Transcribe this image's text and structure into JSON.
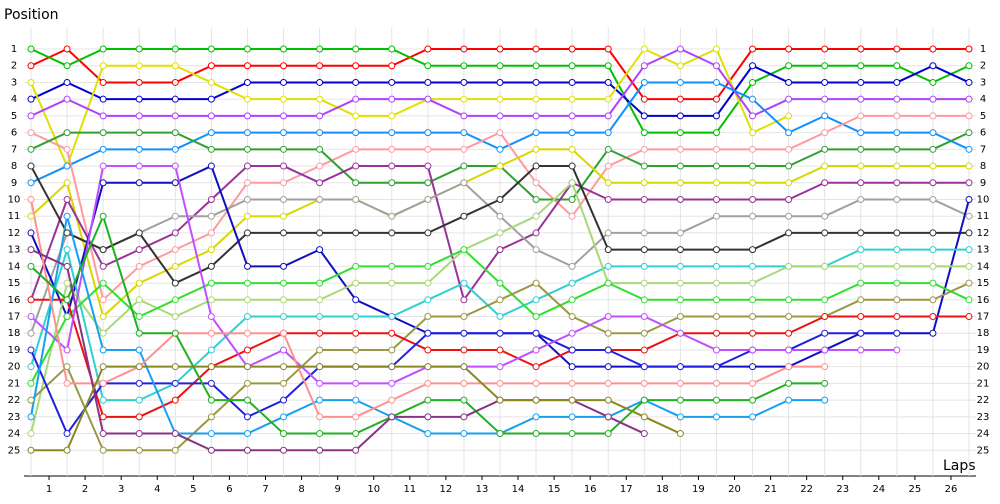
{
  "chart_data": {
    "type": "line",
    "y_axis_label": "Position",
    "x_axis_label": "Laps",
    "x": [
      0,
      1,
      2,
      3,
      4,
      5,
      6,
      7,
      8,
      9,
      10,
      11,
      12,
      13,
      14,
      15,
      16,
      17,
      18,
      19,
      20,
      21,
      22,
      23,
      24,
      25,
      26
    ],
    "xlim": [
      0,
      26
    ],
    "xticks": [
      {
        "value": 0.5,
        "label": "1"
      },
      {
        "value": 1.5,
        "label": "2"
      },
      {
        "value": 2.5,
        "label": "3"
      },
      {
        "value": 3.5,
        "label": "4"
      },
      {
        "value": 4.5,
        "label": "5"
      },
      {
        "value": 5.5,
        "label": "6"
      },
      {
        "value": 6.5,
        "label": "7"
      },
      {
        "value": 7.5,
        "label": "8"
      },
      {
        "value": 8.5,
        "label": "9"
      },
      {
        "value": 9.5,
        "label": "10"
      },
      {
        "value": 10.5,
        "label": "11"
      },
      {
        "value": 11.5,
        "label": "12"
      },
      {
        "value": 12.5,
        "label": "13"
      },
      {
        "value": 13.5,
        "label": "14"
      },
      {
        "value": 14.5,
        "label": "15"
      },
      {
        "value": 15.5,
        "label": "16"
      },
      {
        "value": 16.5,
        "label": "17"
      },
      {
        "value": 17.5,
        "label": "18"
      },
      {
        "value": 18.5,
        "label": "19"
      },
      {
        "value": 19.5,
        "label": "20"
      },
      {
        "value": 20.5,
        "label": "21"
      },
      {
        "value": 21.5,
        "label": "22"
      },
      {
        "value": 22.5,
        "label": "23"
      },
      {
        "value": 23.5,
        "label": "24"
      },
      {
        "value": 24.5,
        "label": "25"
      },
      {
        "value": 25.5,
        "label": "26"
      }
    ],
    "ylim": [
      26,
      0
    ],
    "yticks": [
      1,
      2,
      3,
      4,
      5,
      6,
      7,
      8,
      9,
      10,
      11,
      12,
      13,
      14,
      15,
      16,
      17,
      18,
      19,
      20,
      21,
      22,
      23,
      24,
      25
    ],
    "grid": true,
    "series": [
      {
        "color": "#ff0000",
        "values": [
          2,
          1,
          3,
          3,
          3,
          2,
          2,
          2,
          2,
          2,
          2,
          1,
          1,
          1,
          1,
          1,
          1,
          4,
          4,
          4,
          1,
          1,
          1,
          1,
          1,
          1,
          1
        ]
      },
      {
        "color": "#00c000",
        "values": [
          1,
          2,
          1,
          1,
          1,
          1,
          1,
          1,
          1,
          1,
          1,
          2,
          2,
          2,
          2,
          2,
          2,
          6,
          6,
          6,
          3,
          2,
          2,
          2,
          2,
          3,
          2
        ]
      },
      {
        "color": "#0000d0",
        "values": [
          4,
          3,
          4,
          4,
          4,
          4,
          3,
          3,
          3,
          3,
          3,
          3,
          3,
          3,
          3,
          3,
          3,
          5,
          5,
          5,
          2,
          3,
          3,
          3,
          3,
          2,
          3
        ]
      },
      {
        "color": "#e0e000",
        "values": [
          3,
          8,
          2,
          2,
          2,
          3,
          4,
          4,
          4,
          5,
          5,
          4,
          4,
          4,
          4,
          4,
          4,
          1,
          2,
          1,
          6,
          5,
          null,
          null,
          null,
          null,
          null
        ]
      },
      {
        "color": "#b040ff",
        "values": [
          5,
          4,
          5,
          5,
          5,
          5,
          5,
          5,
          5,
          4,
          4,
          4,
          5,
          5,
          5,
          5,
          5,
          2,
          1,
          2,
          5,
          4,
          4,
          4,
          4,
          4,
          4
        ]
      },
      {
        "color": "#1090ff",
        "values": [
          9,
          8,
          7,
          7,
          7,
          6,
          6,
          6,
          6,
          6,
          6,
          6,
          6,
          7,
          6,
          6,
          6,
          3,
          3,
          3,
          4,
          6,
          5,
          6,
          6,
          6,
          7
        ]
      },
      {
        "color": "#ff9aa0",
        "values": [
          6,
          7,
          16,
          14,
          13,
          12,
          9,
          9,
          8,
          7,
          7,
          7,
          7,
          6,
          9,
          11,
          8,
          7,
          7,
          7,
          7,
          7,
          6,
          5,
          5,
          5,
          5
        ]
      },
      {
        "color": "#30a030",
        "values": [
          7,
          6,
          6,
          6,
          6,
          7,
          7,
          7,
          7,
          9,
          9,
          9,
          8,
          8,
          10,
          10,
          7,
          8,
          8,
          8,
          8,
          8,
          7,
          7,
          7,
          7,
          6
        ]
      },
      {
        "color": "#d8d800",
        "values": [
          11,
          9,
          17,
          15,
          14,
          13,
          11,
          11,
          10,
          10,
          11,
          10,
          9,
          8,
          7,
          7,
          9,
          9,
          9,
          9,
          9,
          9,
          8,
          8,
          8,
          8,
          8
        ]
      },
      {
        "color": "#993399",
        "values": [
          16,
          10,
          14,
          13,
          12,
          10,
          8,
          8,
          9,
          8,
          8,
          8,
          16,
          13,
          12,
          9,
          10,
          10,
          10,
          10,
          10,
          10,
          9,
          9,
          9,
          9,
          9
        ]
      },
      {
        "color": "#a0a0a0",
        "values": [
          18,
          12,
          13,
          12,
          11,
          11,
          10,
          10,
          10,
          10,
          11,
          10,
          9,
          11,
          13,
          14,
          12,
          12,
          12,
          11,
          11,
          11,
          11,
          10,
          10,
          10,
          11
        ]
      },
      {
        "color": "#333333",
        "values": [
          8,
          12,
          13,
          12,
          15,
          14,
          12,
          12,
          12,
          12,
          12,
          12,
          11,
          10,
          8,
          8,
          13,
          13,
          13,
          13,
          13,
          12,
          12,
          12,
          12,
          12,
          12
        ]
      },
      {
        "color": "#1010c0",
        "values": [
          12,
          17,
          9,
          9,
          9,
          8,
          14,
          14,
          13,
          16,
          17,
          18,
          18,
          18,
          18,
          20,
          20,
          20,
          20,
          20,
          20,
          20,
          19,
          18,
          18,
          18,
          10
        ]
      },
      {
        "color": "#30d0d0",
        "values": [
          20,
          13,
          22,
          22,
          21,
          19,
          17,
          17,
          17,
          17,
          17,
          16,
          15,
          17,
          16,
          15,
          14,
          14,
          14,
          14,
          14,
          14,
          14,
          13,
          13,
          13,
          13
        ]
      },
      {
        "color": "#a8d878",
        "values": [
          24,
          15,
          18,
          16,
          17,
          16,
          16,
          16,
          16,
          15,
          15,
          15,
          13,
          12,
          11,
          9,
          15,
          15,
          15,
          15,
          15,
          14,
          14,
          14,
          14,
          14,
          14
        ]
      },
      {
        "color": "#30e030",
        "values": [
          21,
          17,
          15,
          17,
          16,
          15,
          15,
          15,
          15,
          14,
          14,
          14,
          13,
          15,
          17,
          16,
          15,
          16,
          16,
          16,
          16,
          16,
          16,
          15,
          15,
          15,
          16
        ]
      },
      {
        "color": "#999944",
        "values": [
          22,
          20,
          25,
          25,
          25,
          23,
          21,
          21,
          19,
          19,
          19,
          17,
          17,
          16,
          15,
          17,
          18,
          18,
          17,
          17,
          17,
          17,
          17,
          16,
          16,
          16,
          15
        ]
      },
      {
        "color": "#ee1111",
        "values": [
          16,
          16,
          23,
          23,
          22,
          20,
          19,
          18,
          18,
          18,
          18,
          19,
          19,
          19,
          20,
          19,
          19,
          19,
          18,
          18,
          18,
          18,
          17,
          17,
          17,
          17,
          17
        ]
      },
      {
        "color": "#2020e0",
        "values": [
          19,
          24,
          21,
          21,
          21,
          21,
          23,
          22,
          20,
          20,
          20,
          18,
          18,
          18,
          18,
          19,
          19,
          20,
          20,
          20,
          19,
          19,
          18,
          18,
          18,
          null,
          null
        ]
      },
      {
        "color": "#c050ff",
        "values": [
          17,
          19,
          8,
          8,
          8,
          17,
          20,
          19,
          21,
          21,
          21,
          20,
          20,
          20,
          19,
          18,
          17,
          17,
          18,
          19,
          19,
          19,
          19,
          19,
          19,
          null,
          null
        ]
      },
      {
        "color": "#18a0f0",
        "values": [
          23,
          11,
          19,
          19,
          24,
          24,
          24,
          23,
          22,
          22,
          23,
          24,
          24,
          24,
          23,
          23,
          23,
          22,
          23,
          23,
          23,
          22,
          22,
          null,
          null,
          null,
          null
        ]
      },
      {
        "color": "#ff9090",
        "values": [
          10,
          21,
          21,
          20,
          18,
          18,
          18,
          18,
          23,
          23,
          22,
          21,
          21,
          21,
          21,
          21,
          21,
          21,
          21,
          21,
          21,
          20,
          20,
          null,
          null,
          null,
          null
        ]
      },
      {
        "color": "#20b020",
        "values": [
          14,
          16,
          11,
          18,
          18,
          22,
          22,
          24,
          24,
          24,
          23,
          22,
          22,
          24,
          24,
          24,
          24,
          22,
          22,
          22,
          22,
          21,
          21,
          null,
          null,
          null,
          null
        ]
      },
      {
        "color": "#883388",
        "values": [
          13,
          14,
          24,
          24,
          24,
          25,
          25,
          25,
          25,
          25,
          23,
          23,
          23,
          22,
          22,
          22,
          23,
          24,
          null,
          null,
          null,
          null,
          null,
          null,
          null,
          null,
          null
        ]
      },
      {
        "color": "#888822",
        "values": [
          25,
          25,
          20,
          20,
          20,
          20,
          20,
          20,
          20,
          20,
          20,
          20,
          20,
          22,
          22,
          22,
          22,
          23,
          24,
          null,
          null,
          null,
          null,
          null,
          null,
          null,
          null
        ]
      }
    ]
  }
}
